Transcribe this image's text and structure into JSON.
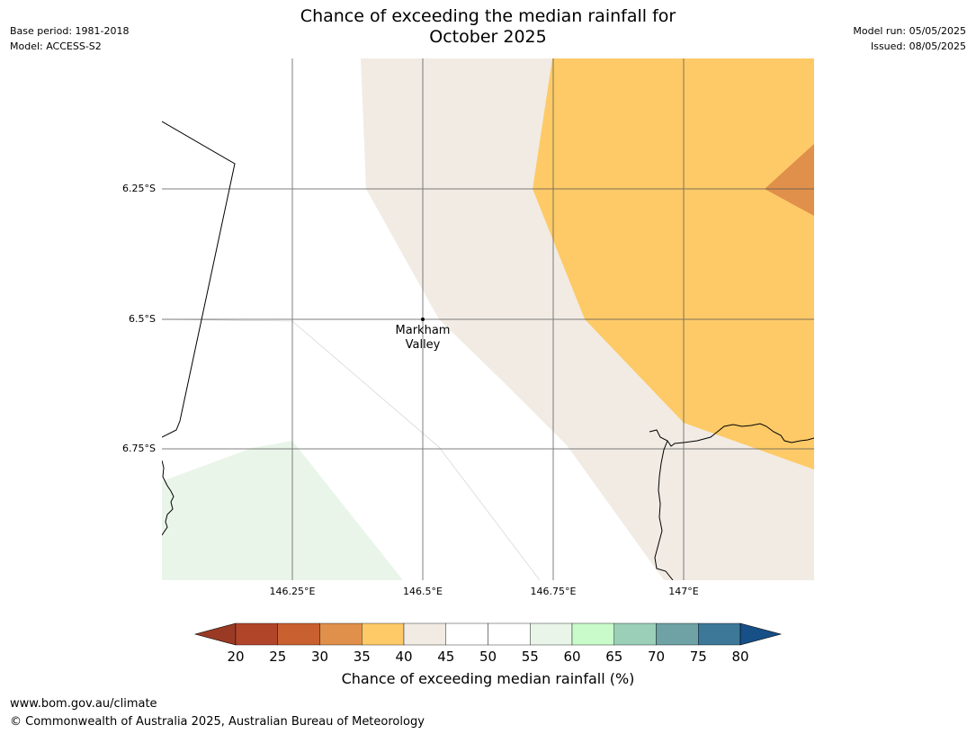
{
  "header": {
    "title_line1": "Chance of exceeding the median rainfall for",
    "title_line2": "October 2025",
    "base_period": "Base period: 1981-2018",
    "model": "Model: ACCESS-S2",
    "model_run": "Model run: 05/05/2025",
    "issued": "Issued: 08/05/2025"
  },
  "map": {
    "lat_labels": [
      "6.25°S",
      "6.5°S",
      "6.75°S"
    ],
    "lon_labels": [
      "146.25°E",
      "146.5°E",
      "146.75°E",
      "147°E"
    ],
    "place_label_line1": "Markham",
    "place_label_line2": "Valley"
  },
  "colorbar": {
    "ticks": [
      "20",
      "25",
      "30",
      "35",
      "40",
      "45",
      "50",
      "55",
      "60",
      "65",
      "70",
      "75",
      "80"
    ],
    "colors": [
      "#9b3a24",
      "#b1452a",
      "#c9602f",
      "#e0904a",
      "#fdca67",
      "#f1ebe4",
      "#ffffff",
      "#ffffff",
      "#e9f5e9",
      "#c9fac9",
      "#9bcfb8",
      "#6ea2a5",
      "#3e7898",
      "#174f87"
    ],
    "label": "Chance of exceeding median rainfall (%)"
  },
  "footer": {
    "url": "www.bom.gov.au/climate",
    "copyright": "© Commonwealth of Australia 2025, Australian Bureau of Meteorology"
  }
}
